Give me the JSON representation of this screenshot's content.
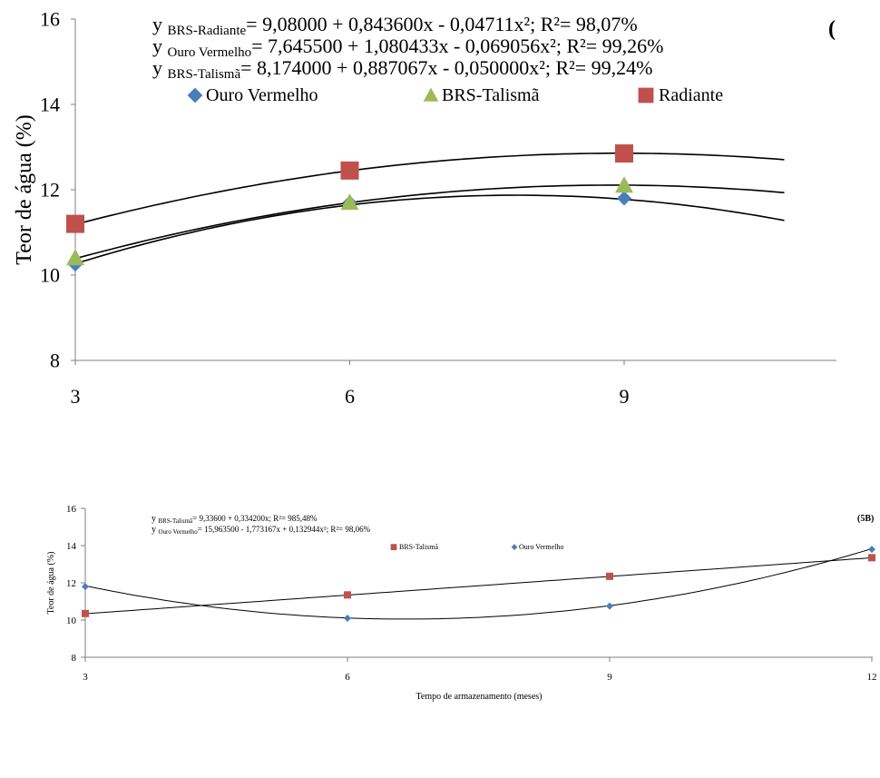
{
  "chart_data": [
    {
      "type": "scatter",
      "panel_tag": "(",
      "ylabel": "Teor de água (%)",
      "xlabel": "",
      "xlim": [
        3,
        12
      ],
      "ylim": [
        8,
        16
      ],
      "x_ticks": [
        "3",
        "6",
        "9"
      ],
      "y_ticks": [
        "8",
        "10",
        "12",
        "14",
        "16"
      ],
      "grid": false,
      "legend_position": "top",
      "equations": [
        {
          "prefix": "y",
          "sub": "BRS-Radiante",
          "body": "= 9,08000 + 0,843600x - 0,04711x²; R²= 98,07%"
        },
        {
          "prefix": "y",
          "sub": "Ouro Vermelho",
          "body": "=  7,645500 + 1,080433x - 0,069056x²; R²= 99,26%"
        },
        {
          "prefix": "y",
          "sub": "BRS-Talismã",
          "body": "= 8,174000 + 0,887067x - 0,050000x²; R²= 99,24%"
        }
      ],
      "series": [
        {
          "name": "Ouro Vermelho",
          "marker": "diamond",
          "color": "#4a7ebb",
          "x": [
            3,
            6,
            9
          ],
          "y": [
            10.25,
            11.7,
            11.8
          ],
          "fit": [
            7.6455,
            1.080433,
            -0.069056
          ]
        },
        {
          "name": "BRS-Talismã",
          "marker": "triangle",
          "color": "#9bbb59",
          "x": [
            3,
            6,
            9
          ],
          "y": [
            10.4,
            11.7,
            12.1
          ],
          "fit": [
            8.174,
            0.887067,
            -0.05
          ]
        },
        {
          "name": "Radiante",
          "marker": "square",
          "color": "#c0504d",
          "x": [
            3,
            6,
            9
          ],
          "y": [
            11.2,
            12.45,
            12.85
          ],
          "fit": [
            9.08,
            0.8436,
            -0.04711
          ]
        }
      ]
    },
    {
      "type": "scatter",
      "panel_tag": "(5B)",
      "ylabel": "Teor de água (%)",
      "xlabel": "Tempo de armazenamento (meses)",
      "xlim": [
        3,
        12
      ],
      "ylim": [
        8,
        16
      ],
      "x_ticks": [
        "3",
        "6",
        "9",
        "12"
      ],
      "y_ticks": [
        "8",
        "10",
        "12",
        "14",
        "16"
      ],
      "grid": false,
      "legend_position": "top",
      "equations": [
        {
          "prefix": "y",
          "sub": "BRS-Talismã",
          "body": "= 9,33600 + 0,334200x; R²= 985,48%"
        },
        {
          "prefix": "y",
          "sub": "Ouro Vermelho",
          "body": "= 15,963500 - 1,773167x + 0,132944x²; R²= 98,06%"
        }
      ],
      "series": [
        {
          "name": "BRS-Talismã",
          "marker": "square",
          "color": "#c0504d",
          "x": [
            3,
            6,
            9,
            12
          ],
          "y": [
            10.35,
            11.35,
            12.35,
            13.35
          ],
          "fit": [
            9.336,
            0.3342,
            0
          ]
        },
        {
          "name": "Ouro Vermelho",
          "marker": "diamond",
          "color": "#4a7ebb",
          "x": [
            3,
            6,
            9,
            12
          ],
          "y": [
            11.8,
            10.1,
            10.75,
            13.8
          ],
          "fit": [
            15.9635,
            -1.773167,
            0.132944
          ]
        }
      ]
    }
  ]
}
